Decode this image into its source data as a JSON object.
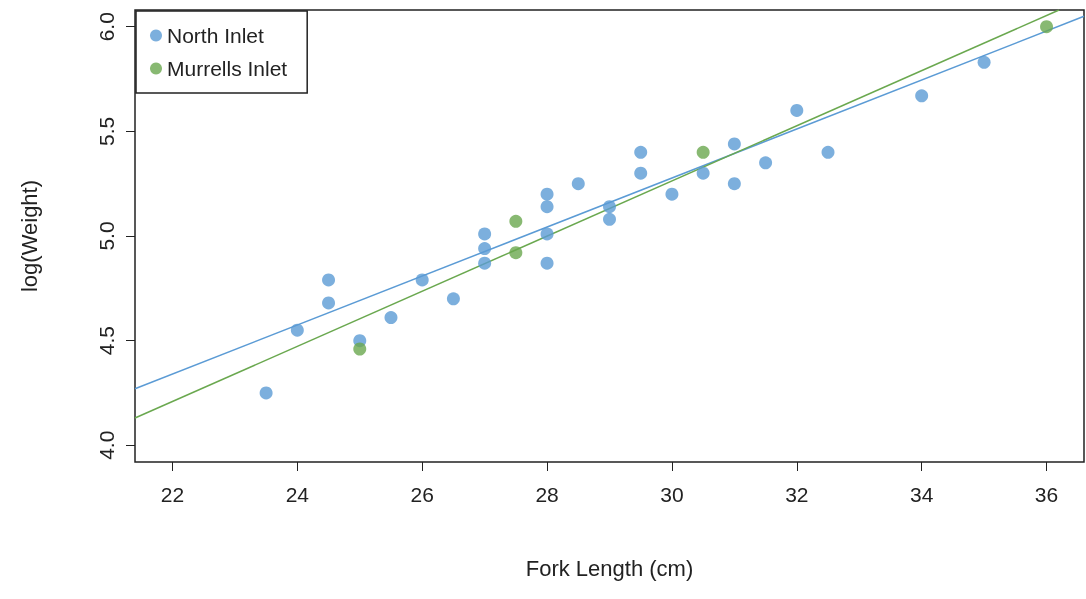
{
  "chart_data": {
    "type": "scatter",
    "xlabel": "Fork Length (cm)",
    "ylabel": "log(Weight)",
    "xlim": [
      21.4,
      36.6
    ],
    "ylim": [
      3.92,
      6.08
    ],
    "xticks": [
      22,
      24,
      26,
      28,
      30,
      32,
      34,
      36
    ],
    "yticks": [
      {
        "value": 4,
        "label": "4.0"
      },
      {
        "value": 4.5,
        "label": "4.5"
      },
      {
        "value": 5,
        "label": "5.0"
      },
      {
        "value": 5.5,
        "label": "5.5"
      },
      {
        "value": 6,
        "label": "6.0"
      }
    ],
    "grid": false,
    "legend": "top left",
    "marker": "circle",
    "series": [
      {
        "name": "North Inlet",
        "color": "#5b9bd5",
        "x": [
          23.5,
          24,
          24.5,
          24.5,
          25,
          25.5,
          26,
          26.5,
          27,
          27,
          27,
          28,
          28,
          28,
          28,
          28.5,
          29,
          29,
          29.5,
          29.5,
          30,
          30.5,
          31,
          31,
          31.5,
          32,
          32.5,
          34,
          35
        ],
        "values": [
          4.25,
          4.55,
          4.79,
          4.68,
          4.5,
          4.61,
          4.79,
          4.7,
          5.01,
          4.94,
          4.87,
          5.2,
          5.14,
          5.01,
          4.87,
          5.25,
          5.14,
          5.08,
          5.4,
          5.3,
          5.2,
          5.3,
          5.44,
          5.25,
          5.35,
          5.6,
          5.4,
          5.67,
          5.83
        ]
      },
      {
        "name": "Murrells Inlet",
        "color": "#6aa84f",
        "x": [
          25,
          27.5,
          27.5,
          30.5,
          36
        ],
        "values": [
          4.46,
          5.07,
          4.92,
          5.4,
          6.0
        ]
      },
      {
        "type": "line",
        "marker": "none",
        "color": "#5b9bd5",
        "x": [
          21.4,
          36.6
        ],
        "values": [
          4.27,
          6.05
        ]
      },
      {
        "type": "line",
        "marker": "none",
        "color": "#6aa84f",
        "x": [
          21.4,
          36.2
        ],
        "values": [
          4.13,
          6.08
        ]
      }
    ]
  }
}
